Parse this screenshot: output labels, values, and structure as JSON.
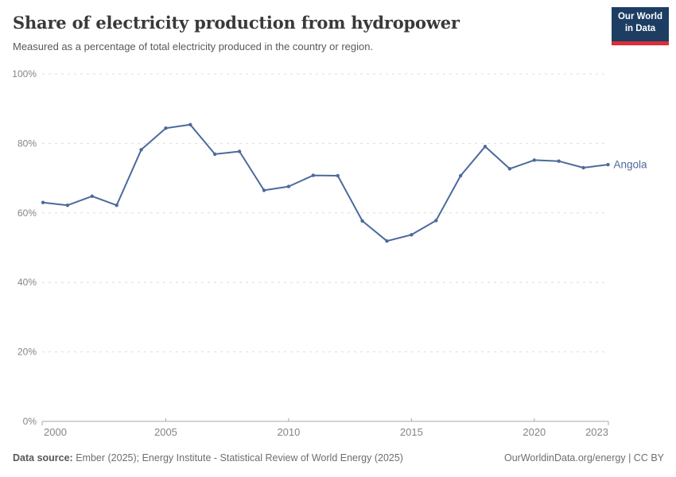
{
  "header": {
    "title": "Share of electricity production from hydropower",
    "subtitle": "Measured as a percentage of total electricity produced in the country or region.",
    "logo": {
      "line1": "Our World",
      "line2": "in Data",
      "bg_color": "#1d3d63",
      "accent_color": "#dc2e38"
    }
  },
  "chart_data": {
    "type": "line",
    "title": "Share of electricity production from hydropower",
    "subtitle": "Measured as a percentage of total electricity produced in the country or region.",
    "xlabel": "",
    "ylabel": "",
    "xlim": [
      2000,
      2023
    ],
    "ylim": [
      0,
      100
    ],
    "x_ticks": [
      2000,
      2005,
      2010,
      2015,
      2020,
      2023
    ],
    "y_ticks": [
      0,
      20,
      40,
      60,
      80,
      100
    ],
    "y_tick_suffix": "%",
    "grid": "dashed-horizontal",
    "legend_position": "end-of-line-label",
    "series": [
      {
        "name": "Angola",
        "color": "#4c6a9c",
        "x": [
          2000,
          2001,
          2002,
          2003,
          2004,
          2005,
          2006,
          2007,
          2008,
          2009,
          2010,
          2011,
          2012,
          2013,
          2014,
          2015,
          2016,
          2017,
          2018,
          2019,
          2020,
          2021,
          2022,
          2023
        ],
        "values": [
          63.0,
          62.2,
          64.8,
          62.2,
          78.2,
          84.4,
          85.4,
          76.9,
          77.7,
          66.5,
          67.6,
          70.8,
          70.7,
          57.7,
          51.9,
          53.7,
          57.8,
          70.7,
          79.1,
          72.7,
          75.2,
          74.9,
          73.0,
          73.9
        ]
      }
    ],
    "colors": {
      "gridline": "#dedede",
      "axis_line": "#a8a8a8",
      "tick_label": "#858585"
    }
  },
  "footer": {
    "datasource_label": "Data source:",
    "datasource_text": " Ember (2025); Energy Institute - Statistical Review of World Energy (2025)",
    "link_text": "OurWorldinData.org/energy | CC BY"
  }
}
